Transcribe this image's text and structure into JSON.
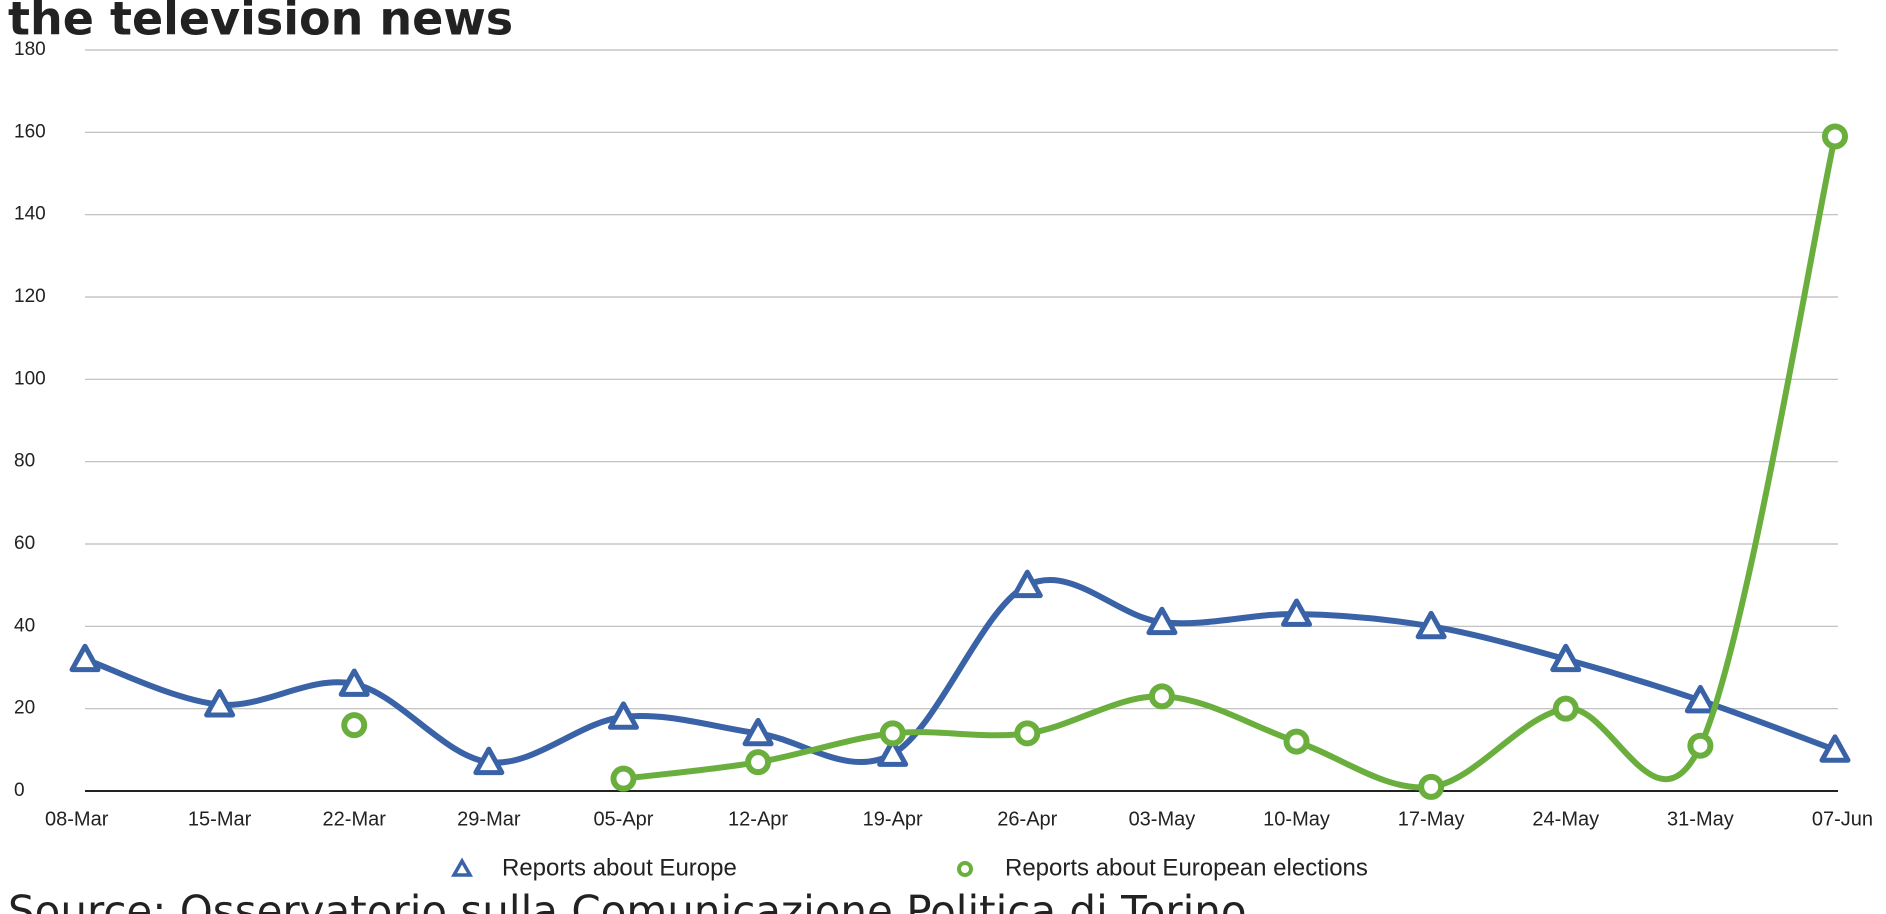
{
  "chart_data": {
    "type": "line",
    "title": "the television news",
    "source": "Source: Osservatorio sulla Comunicazione Politica di Torino",
    "categories": [
      "08-Mar",
      "15-Mar",
      "22-Mar",
      "29-Mar",
      "05-Apr",
      "12-Apr",
      "19-Apr",
      "26-Apr",
      "03-May",
      "10-May",
      "17-May",
      "24-May",
      "31-May",
      "07-Jun"
    ],
    "series": [
      {
        "name": "Reports about Europe",
        "color": "#3a62a6",
        "marker": "triangle",
        "values": [
          32,
          21,
          26,
          7,
          18,
          14,
          9,
          50,
          41,
          43,
          40,
          32,
          22,
          10
        ]
      },
      {
        "name": "Reports about European elections",
        "color": "#6aaf3d",
        "marker": "circle",
        "values": [
          null,
          null,
          16,
          null,
          3,
          7,
          14,
          14,
          23,
          12,
          1,
          20,
          11,
          159
        ]
      }
    ],
    "ylim": [
      0,
      180
    ],
    "yticks": [
      0,
      20,
      40,
      60,
      80,
      100,
      120,
      140,
      160,
      180
    ],
    "grid": true
  }
}
